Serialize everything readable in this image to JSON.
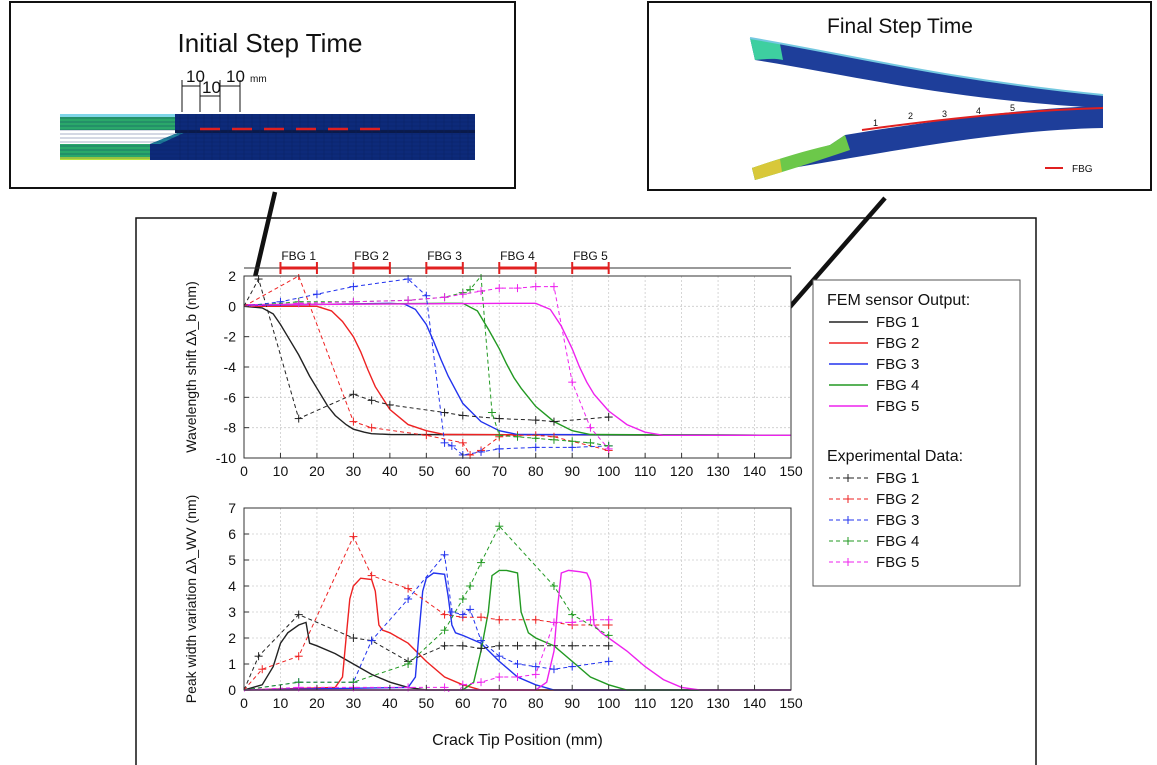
{
  "insets": {
    "initial": {
      "title": "Initial Step Time",
      "dims": [
        "10",
        "10",
        "10"
      ],
      "unit": "mm"
    },
    "final": {
      "title": "Final Step Time",
      "labels": [
        "1",
        "2",
        "3",
        "4",
        "5"
      ],
      "legend": "FBG"
    }
  },
  "fbg_bar": [
    {
      "label": "FBG 1",
      "start": 10,
      "end": 20
    },
    {
      "label": "FBG 2",
      "start": 30,
      "end": 40
    },
    {
      "label": "FBG 3",
      "start": 50,
      "end": 60
    },
    {
      "label": "FBG 4",
      "start": 70,
      "end": 80
    },
    {
      "label": "FBG 5",
      "start": 90,
      "end": 100
    }
  ],
  "legend": {
    "fem_title": "FEM sensor Output:",
    "exp_title": "Experimental Data:"
  },
  "colors": {
    "FBG 1": "#222222",
    "FBG 2": "#ee2222",
    "FBG 3": "#2233ee",
    "FBG 4": "#229922",
    "FBG 5": "#ee22ee",
    "accent_red": "#e02020"
  },
  "chart_data": [
    {
      "type": "line",
      "title": "",
      "xlabel": "",
      "ylabel": "Wavelength shift Δλ_b (nm)",
      "xlim": [
        0,
        150
      ],
      "ylim": [
        -10,
        2
      ],
      "xticks": [
        0,
        10,
        20,
        30,
        40,
        50,
        60,
        70,
        80,
        90,
        100,
        110,
        120,
        130,
        140,
        150
      ],
      "yticks": [
        -10,
        -8,
        -6,
        -4,
        -2,
        0,
        2
      ],
      "fem_series": [
        {
          "name": "FBG 1",
          "x": [
            0,
            5,
            8,
            10,
            12,
            15,
            18,
            20,
            23,
            25,
            28,
            30,
            33,
            35,
            40,
            150
          ],
          "y": [
            0,
            -0.1,
            -0.5,
            -1.2,
            -2.0,
            -3.2,
            -4.6,
            -5.4,
            -6.6,
            -7.2,
            -7.8,
            -8.1,
            -8.3,
            -8.4,
            -8.45,
            -8.5
          ]
        },
        {
          "name": "FBG 2",
          "x": [
            0,
            20,
            24,
            27,
            30,
            32,
            34,
            36,
            40,
            45,
            50,
            55,
            150
          ],
          "y": [
            0,
            0,
            -0.3,
            -1.0,
            -2.0,
            -3.0,
            -4.2,
            -5.3,
            -6.8,
            -7.8,
            -8.2,
            -8.45,
            -8.5
          ]
        },
        {
          "name": "FBG 3",
          "x": [
            0,
            40,
            44,
            47,
            50,
            52,
            54,
            56,
            60,
            65,
            70,
            75,
            150
          ],
          "y": [
            0.05,
            0.2,
            0.15,
            -0.2,
            -1.2,
            -2.3,
            -3.5,
            -4.6,
            -6.4,
            -7.6,
            -8.2,
            -8.45,
            -8.5
          ]
        },
        {
          "name": "FBG 4",
          "x": [
            0,
            55,
            60,
            64,
            67,
            70,
            72,
            74,
            76,
            80,
            85,
            90,
            95,
            150
          ],
          "y": [
            0.1,
            0.2,
            0.2,
            -0.3,
            -1.5,
            -2.8,
            -3.8,
            -4.7,
            -5.4,
            -6.6,
            -7.6,
            -8.2,
            -8.45,
            -8.5
          ]
        },
        {
          "name": "FBG 5",
          "x": [
            0,
            75,
            80,
            84,
            87,
            90,
            92,
            94,
            96,
            100,
            105,
            110,
            115,
            150
          ],
          "y": [
            0.1,
            0.2,
            0.2,
            -0.2,
            -1.3,
            -2.8,
            -4.0,
            -5.0,
            -5.8,
            -6.9,
            -7.8,
            -8.3,
            -8.5,
            -8.5
          ]
        }
      ],
      "exp_series": [
        {
          "name": "FBG 1",
          "x": [
            0,
            4,
            15,
            30,
            35,
            40,
            55,
            60,
            70,
            80,
            85,
            100
          ],
          "y": [
            0,
            1.8,
            -7.4,
            -5.8,
            -6.2,
            -6.5,
            -7.0,
            -7.2,
            -7.4,
            -7.5,
            -7.6,
            -7.3
          ]
        },
        {
          "name": "FBG 2",
          "x": [
            0,
            15,
            30,
            35,
            50,
            60,
            62,
            65,
            70,
            75,
            80,
            85,
            100
          ],
          "y": [
            0,
            2.0,
            -7.6,
            -8.0,
            -8.5,
            -9.0,
            -9.8,
            -9.5,
            -8.6,
            -8.5,
            -8.5,
            -8.6,
            -9.5
          ]
        },
        {
          "name": "FBG 3",
          "x": [
            0,
            10,
            20,
            30,
            45,
            50,
            55,
            57,
            60,
            65,
            70,
            80,
            90,
            100
          ],
          "y": [
            0,
            0.3,
            0.8,
            1.3,
            1.8,
            0.7,
            -9.0,
            -9.2,
            -9.8,
            -9.6,
            -9.4,
            -9.3,
            -9.3,
            -9.2
          ]
        },
        {
          "name": "FBG 4",
          "x": [
            0,
            15,
            30,
            45,
            55,
            60,
            62,
            65,
            68,
            70,
            75,
            80,
            85,
            90,
            95,
            100
          ],
          "y": [
            0,
            0.3,
            0.3,
            0.4,
            0.6,
            0.9,
            1.1,
            2.0,
            -7.0,
            -8.5,
            -8.6,
            -8.7,
            -8.8,
            -8.9,
            -9.0,
            -9.2
          ]
        },
        {
          "name": "FBG 5",
          "x": [
            0,
            15,
            30,
            45,
            55,
            60,
            65,
            70,
            75,
            80,
            85,
            90,
            95,
            100
          ],
          "y": [
            0,
            0.2,
            0.3,
            0.4,
            0.6,
            0.8,
            1.0,
            1.2,
            1.2,
            1.3,
            1.3,
            -5.0,
            -8.0,
            -9.4
          ]
        }
      ]
    },
    {
      "type": "line",
      "title": "",
      "xlabel": "Crack Tip Position (mm)",
      "ylabel": "Peak width variation Δλ_WV (nm)",
      "xlim": [
        0,
        150
      ],
      "ylim": [
        0,
        7
      ],
      "xticks": [
        0,
        10,
        20,
        30,
        40,
        50,
        60,
        70,
        80,
        90,
        100,
        110,
        120,
        130,
        140,
        150
      ],
      "yticks": [
        0,
        1,
        2,
        3,
        4,
        5,
        6,
        7
      ],
      "fem_series": [
        {
          "name": "FBG 1",
          "x": [
            0,
            5,
            8,
            10,
            12,
            15,
            17,
            18,
            20,
            25,
            30,
            35,
            40,
            45,
            50,
            150
          ],
          "y": [
            0,
            0.2,
            0.9,
            1.8,
            2.2,
            2.5,
            2.6,
            1.8,
            1.7,
            1.4,
            1.0,
            0.6,
            0.3,
            0.1,
            0,
            0
          ]
        },
        {
          "name": "FBG 2",
          "x": [
            0,
            25,
            27,
            28,
            29,
            30,
            32,
            35,
            36,
            37,
            38,
            40,
            45,
            50,
            55,
            60,
            65,
            150
          ],
          "y": [
            0,
            0.1,
            0.5,
            2.0,
            3.5,
            4.0,
            4.3,
            4.25,
            3.8,
            2.5,
            2.3,
            2.2,
            1.8,
            1.1,
            0.5,
            0.2,
            0,
            0
          ]
        },
        {
          "name": "FBG 3",
          "x": [
            0,
            45,
            47,
            48,
            49,
            50,
            52,
            55,
            56,
            57,
            58,
            60,
            65,
            70,
            75,
            80,
            85,
            150
          ],
          "y": [
            0,
            0.1,
            0.5,
            2.2,
            3.8,
            4.3,
            4.5,
            4.45,
            3.6,
            2.5,
            2.2,
            2.1,
            1.8,
            1.1,
            0.5,
            0.2,
            0,
            0
          ]
        },
        {
          "name": "FBG 4",
          "x": [
            0,
            60,
            63,
            65,
            67,
            68,
            70,
            72,
            75,
            76,
            78,
            80,
            85,
            90,
            95,
            100,
            105,
            150
          ],
          "y": [
            0,
            0,
            0.3,
            1.5,
            3.0,
            4.4,
            4.6,
            4.6,
            4.5,
            3.0,
            2.2,
            2.0,
            1.7,
            1.1,
            0.5,
            0.2,
            0,
            0
          ]
        },
        {
          "name": "FBG 5",
          "x": [
            0,
            80,
            83,
            85,
            86,
            87,
            89,
            92,
            94,
            95,
            96,
            98,
            100,
            105,
            110,
            115,
            120,
            125,
            150
          ],
          "y": [
            0,
            0,
            0.3,
            1.5,
            3.2,
            4.5,
            4.6,
            4.55,
            4.5,
            4.2,
            2.5,
            2.2,
            2.0,
            1.5,
            0.9,
            0.4,
            0.1,
            0,
            0
          ]
        }
      ],
      "exp_series": [
        {
          "name": "FBG 1",
          "x": [
            0,
            4,
            15,
            30,
            35,
            45,
            55,
            60,
            65,
            70,
            75,
            80,
            90,
            100
          ],
          "y": [
            0,
            1.3,
            2.9,
            2.0,
            1.9,
            1.1,
            1.7,
            1.7,
            1.6,
            1.7,
            1.7,
            1.7,
            1.7,
            1.7
          ]
        },
        {
          "name": "FBG 2",
          "x": [
            0,
            5,
            15,
            30,
            35,
            45,
            55,
            60,
            65,
            70,
            80,
            90,
            100
          ],
          "y": [
            0,
            0.8,
            1.3,
            5.9,
            4.4,
            3.9,
            2.9,
            2.8,
            2.8,
            2.7,
            2.7,
            2.5,
            2.5
          ]
        },
        {
          "name": "FBG 3",
          "x": [
            0,
            15,
            30,
            35,
            45,
            55,
            57,
            60,
            62,
            65,
            70,
            75,
            80,
            85,
            90,
            100
          ],
          "y": [
            0,
            0.3,
            0.3,
            1.9,
            3.5,
            5.2,
            3.0,
            2.9,
            3.1,
            1.9,
            1.3,
            1.0,
            0.9,
            0.8,
            0.9,
            1.1
          ]
        },
        {
          "name": "FBG 4",
          "x": [
            0,
            15,
            30,
            45,
            55,
            60,
            62,
            65,
            70,
            85,
            90,
            100
          ],
          "y": [
            0,
            0.3,
            0.3,
            1.0,
            2.3,
            3.5,
            4.0,
            4.9,
            6.3,
            4.0,
            2.9,
            2.1
          ]
        },
        {
          "name": "FBG 5",
          "x": [
            0,
            15,
            30,
            45,
            55,
            58,
            60,
            65,
            70,
            75,
            80,
            85,
            90,
            95,
            100
          ],
          "y": [
            0,
            0.1,
            0.1,
            0.1,
            0.1,
            -0.3,
            0.2,
            0.3,
            0.5,
            0.5,
            0.6,
            2.6,
            2.6,
            2.7,
            2.7
          ]
        }
      ]
    }
  ]
}
